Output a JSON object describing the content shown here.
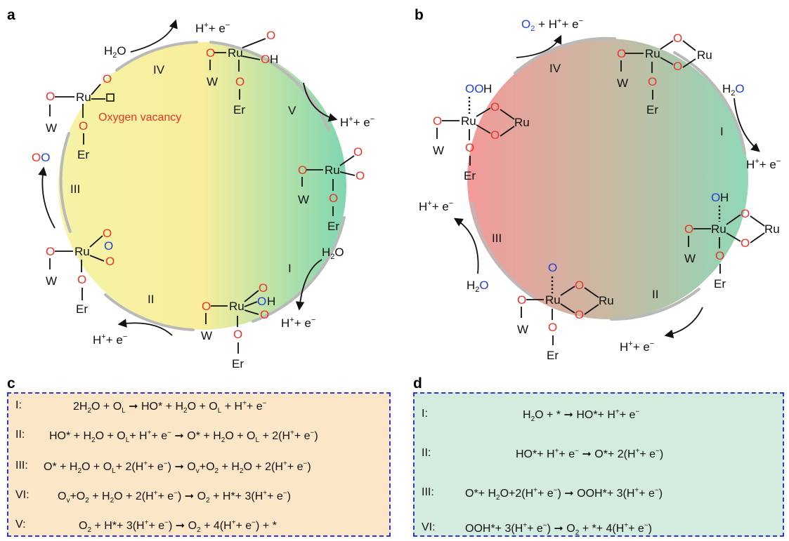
{
  "panels": {
    "a": {
      "letter": "a",
      "stages": [
        "IV",
        "V",
        "I",
        "II",
        "III"
      ],
      "vacancy_label": "Oxygen vacancy",
      "species": {
        "h2o": "H2O",
        "proton_electron": "H+ + e−",
        "o2": "OO"
      },
      "atoms": {
        "ru": "Ru",
        "w": "W",
        "er": "Er",
        "o": "O",
        "oh": "OH"
      }
    },
    "b": {
      "letter": "b",
      "stages": [
        "IV",
        "I",
        "II",
        "III"
      ],
      "species": {
        "h2o": "H2O",
        "proton_electron": "H+ + e−",
        "o2_release": "O2 + H+ + e−"
      },
      "atoms": {
        "ru": "Ru",
        "w": "W",
        "er": "Er",
        "o": "O",
        "oh": "OH",
        "ooh": "OOH"
      }
    },
    "c": {
      "letter": "c",
      "rows": [
        {
          "label": "I:",
          "equation": "2H2O + OL → HO* + H2O + OL + H+ + e−"
        },
        {
          "label": "II:",
          "equation": "HO* + H2O + OL + H+ + e− → O* + H2O + OL + 2(H+ + e−)"
        },
        {
          "label": "III:",
          "equation": "O* + H2O + OL + 2(H+ + e−) → Ov + O2 + H2O + 2(H+ + e−)"
        },
        {
          "label": "VI:",
          "equation": "Ov + O2 + H2O + 2(H+ + e−) → O2 + H* + 3(H+ + e−)"
        },
        {
          "label": "V:",
          "equation": "O2 + H* + 3(H+ + e−) → O2 + 4(H+ + e−) + *"
        }
      ]
    },
    "d": {
      "letter": "d",
      "rows": [
        {
          "label": "I:",
          "equation": "H2O + * → HO* + H+ + e−"
        },
        {
          "label": "II:",
          "equation": "HO* + H+ + e− → O* + 2(H+ + e−)"
        },
        {
          "label": "III:",
          "equation": "O* + H2O + 2(H+ + e−) → OOH* + 3(H+ + e−)"
        },
        {
          "label": "VI:",
          "equation": "OOH* + 3(H+ + e−) → O2 + * + 4(H+ + e−)"
        }
      ]
    }
  },
  "colors": {
    "oxygen_red": "#e8332a",
    "oxygen_blue": "#1f3fd9",
    "box_c_fill": "#fbe6c8",
    "box_d_fill": "#d3ecdd",
    "box_border": "#2d35d4"
  }
}
